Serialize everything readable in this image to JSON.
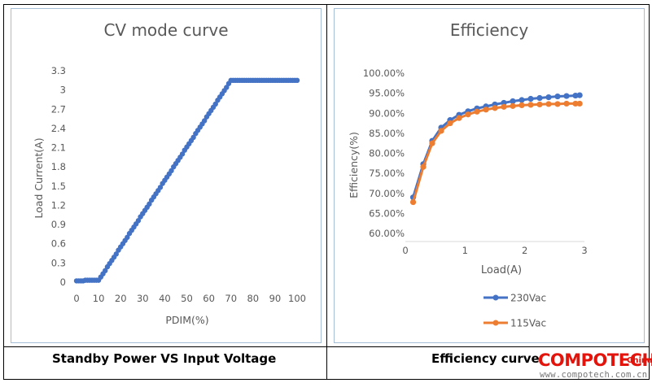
{
  "charts": {
    "cv": {
      "chart_data": {
        "type": "line",
        "title": "CV mode curve",
        "xlabel": "PDIM(%)",
        "ylabel": "Load Current(A)",
        "xlim": [
          0,
          100
        ],
        "ylim": [
          0,
          3.3
        ],
        "xticks": [
          0,
          10,
          20,
          30,
          40,
          50,
          60,
          70,
          80,
          90,
          100
        ],
        "xtick_labels": [
          "0",
          "10",
          "20",
          "30",
          "40",
          "50",
          "60",
          "70",
          "80",
          "90",
          "100"
        ],
        "yticks": [
          0,
          0.3,
          0.6,
          0.9,
          1.2,
          1.5,
          1.8,
          2.1,
          2.4,
          2.7,
          3.0,
          3.3
        ],
        "ytick_labels": [
          "0",
          "0.3",
          "0.6",
          "0.9",
          "1.2",
          "1.5",
          "1.8",
          "2.1",
          "2.4",
          "2.7",
          "3",
          "3.3"
        ],
        "grid": false,
        "color": "#4472c4",
        "series": [
          {
            "x": [
              0,
              1,
              2,
              3,
              4,
              5,
              6,
              7,
              8,
              9,
              10,
              11,
              12,
              13,
              14,
              15,
              16,
              17,
              18,
              19,
              20,
              21,
              22,
              23,
              24,
              25,
              26,
              27,
              28,
              29,
              30,
              31,
              32,
              33,
              34,
              35,
              36,
              37,
              38,
              39,
              40,
              41,
              42,
              43,
              44,
              45,
              46,
              47,
              48,
              49,
              50,
              51,
              52,
              53,
              54,
              55,
              56,
              57,
              58,
              59,
              60,
              61,
              62,
              63,
              64,
              65,
              66,
              67,
              68,
              69,
              70,
              71,
              72,
              73,
              74,
              75,
              76,
              77,
              78,
              79,
              80,
              81,
              82,
              83,
              84,
              85,
              86,
              87,
              88,
              89,
              90,
              91,
              92,
              93,
              94,
              95,
              96,
              97,
              98,
              99,
              100
            ],
            "values": [
              0.02,
              0.02,
              0.02,
              0.02,
              0.03,
              0.03,
              0.03,
              0.03,
              0.03,
              0.03,
              0.03,
              0.08,
              0.13,
              0.18,
              0.24,
              0.29,
              0.34,
              0.39,
              0.44,
              0.5,
              0.55,
              0.6,
              0.65,
              0.7,
              0.76,
              0.81,
              0.86,
              0.91,
              0.96,
              1.02,
              1.07,
              1.12,
              1.17,
              1.22,
              1.28,
              1.33,
              1.38,
              1.43,
              1.48,
              1.54,
              1.59,
              1.64,
              1.69,
              1.74,
              1.8,
              1.85,
              1.9,
              1.95,
              2.0,
              2.06,
              2.11,
              2.16,
              2.21,
              2.26,
              2.32,
              2.37,
              2.42,
              2.47,
              2.52,
              2.58,
              2.63,
              2.68,
              2.73,
              2.78,
              2.84,
              2.89,
              2.94,
              2.99,
              3.04,
              3.1,
              3.15,
              3.15,
              3.15,
              3.15,
              3.15,
              3.15,
              3.15,
              3.15,
              3.15,
              3.15,
              3.15,
              3.15,
              3.15,
              3.15,
              3.15,
              3.15,
              3.15,
              3.15,
              3.15,
              3.15,
              3.15,
              3.15,
              3.15,
              3.15,
              3.15,
              3.15,
              3.15,
              3.15,
              3.15,
              3.15,
              3.15
            ]
          }
        ]
      }
    },
    "eff": {
      "chart_data": {
        "type": "line",
        "title": "Efficiency",
        "xlabel": "Load(A)",
        "ylabel": "Efficiency(%)",
        "xlim": [
          0,
          3
        ],
        "ylim": [
          60,
          100
        ],
        "xticks": [
          0,
          1,
          2,
          3
        ],
        "xtick_labels": [
          "0",
          "1",
          "2",
          "3"
        ],
        "yticks": [
          60,
          65,
          70,
          75,
          80,
          85,
          90,
          95,
          100
        ],
        "ytick_labels": [
          "60.00%",
          "65.00%",
          "70.00%",
          "75.00%",
          "80.00%",
          "85.00%",
          "90.00%",
          "95.00%",
          "100.00%"
        ],
        "grid": false,
        "legend_position": "bottom",
        "x": [
          0.13,
          0.3,
          0.45,
          0.6,
          0.75,
          0.9,
          1.05,
          1.2,
          1.35,
          1.5,
          1.65,
          1.8,
          1.95,
          2.1,
          2.25,
          2.4,
          2.55,
          2.7,
          2.85,
          2.92
        ],
        "series": [
          {
            "name": "230Vac",
            "color": "#4472c4",
            "values": [
              69.0,
              77.3,
              83.1,
              86.4,
              88.3,
              89.6,
              90.5,
              91.2,
              91.7,
              92.2,
              92.6,
              93.0,
              93.3,
              93.6,
              93.8,
              94.0,
              94.2,
              94.3,
              94.4,
              94.5
            ]
          },
          {
            "name": "115Vac",
            "color": "#ed7d31",
            "values": [
              67.8,
              76.6,
              82.5,
              85.6,
              87.5,
              88.8,
              89.7,
              90.4,
              90.9,
              91.3,
              91.6,
              91.8,
              92.0,
              92.1,
              92.2,
              92.3,
              92.3,
              92.4,
              92.4,
              92.4
            ]
          }
        ]
      }
    }
  },
  "captions": {
    "left": "Standby Power VS Input Voltage",
    "right": "Efficiency curve"
  },
  "watermark": {
    "brand": "COMPOTECH",
    "region": "China",
    "url": "www.compotech.com.cn",
    "color": "#e3140c"
  }
}
